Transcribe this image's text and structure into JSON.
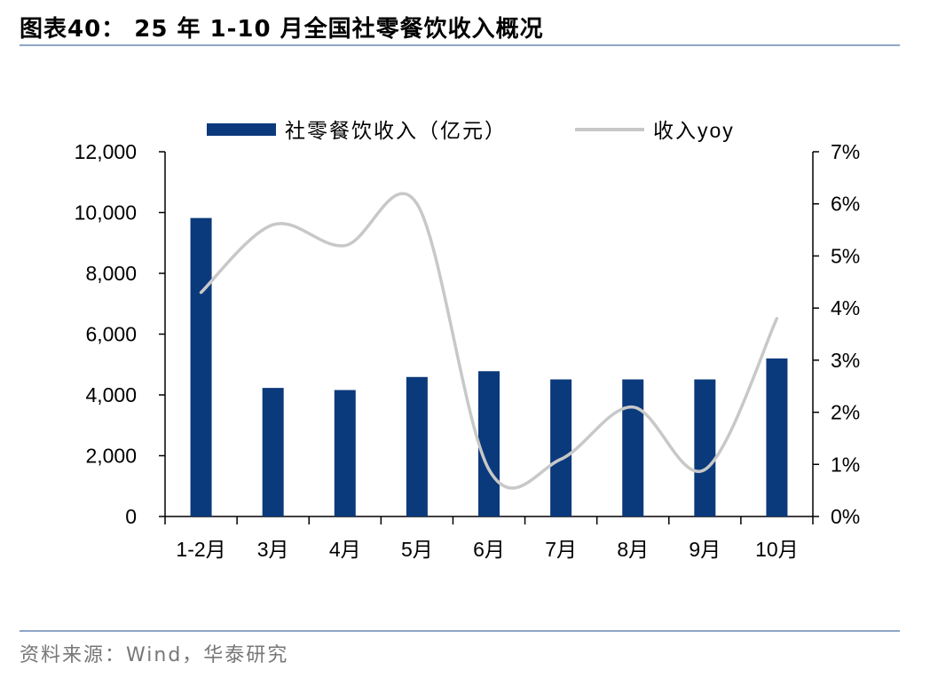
{
  "title": "图表40： 25 年 1-10 月全国社零餐饮收入概况",
  "source": "资料来源：Wind，华泰研究",
  "colors": {
    "bar": "#0b3a7c",
    "line": "#c8c8c8",
    "rule": "#8ea6c6"
  },
  "chart_data": {
    "type": "bar+line",
    "categories": [
      "1-2月",
      "3月",
      "4月",
      "5月",
      "6月",
      "7月",
      "8月",
      "9月",
      "10月"
    ],
    "series": [
      {
        "name": "社零餐饮收入（亿元）",
        "type": "bar",
        "axis": "left",
        "values": [
          9820,
          4230,
          4160,
          4590,
          4780,
          4510,
          4510,
          4510,
          5200
        ]
      },
      {
        "name": "收入yoy",
        "type": "line",
        "axis": "right",
        "values": [
          4.3,
          5.6,
          5.2,
          6.0,
          0.9,
          1.1,
          2.1,
          0.9,
          3.8
        ]
      }
    ],
    "y_left": {
      "min": 0,
      "max": 12000,
      "ticks": [
        "0",
        "2,000",
        "4,000",
        "6,000",
        "8,000",
        "10,000",
        "12,000"
      ]
    },
    "y_right": {
      "min": 0,
      "max": 7,
      "ticks": [
        "0%",
        "1%",
        "2%",
        "3%",
        "4%",
        "5%",
        "6%",
        "7%"
      ]
    },
    "grid": false,
    "legend_position": "top"
  }
}
